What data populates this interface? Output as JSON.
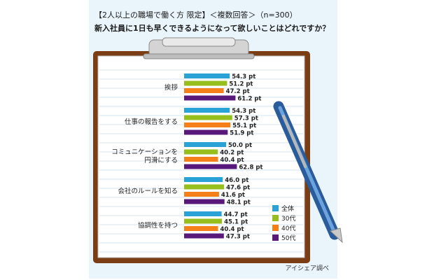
{
  "header": {
    "line1": "【2人以上の職場で働く方 限定】＜複数回答＞（n=300）",
    "line2": "新入社員に1日も早くできるようになって欲しいことはどれですか？"
  },
  "credit": "アイシェア調べ",
  "colors": {
    "series": [
      "#2aa2d6",
      "#96bf1d",
      "#f57f18",
      "#58197a"
    ],
    "panel": "#e9f4fb",
    "paper": "#ffffff",
    "board": "#7a3d14",
    "line": "#c8dceb"
  },
  "icons": [
    "clipboard-icon",
    "pen-icon"
  ],
  "chart_data": {
    "type": "bar",
    "orientation": "horizontal",
    "unit": "pt",
    "categories": [
      [
        "挨拶"
      ],
      [
        "仕事の報告をする"
      ],
      [
        "コミュニケーションを",
        "円滑にする"
      ],
      [
        "会社のルールを知る"
      ],
      [
        "協調性を持つ"
      ]
    ],
    "series": [
      {
        "name": "全体",
        "values": [
          54.3,
          54.3,
          50.0,
          46.0,
          44.7
        ]
      },
      {
        "name": "30代",
        "values": [
          51.2,
          57.3,
          40.2,
          47.6,
          45.1
        ]
      },
      {
        "name": "40代",
        "values": [
          47.2,
          55.1,
          40.4,
          41.6,
          40.4
        ]
      },
      {
        "name": "50代",
        "values": [
          61.2,
          51.9,
          62.8,
          48.1,
          47.3
        ]
      }
    ],
    "xlim": [
      0,
      70
    ],
    "legend": "bottom-right"
  }
}
